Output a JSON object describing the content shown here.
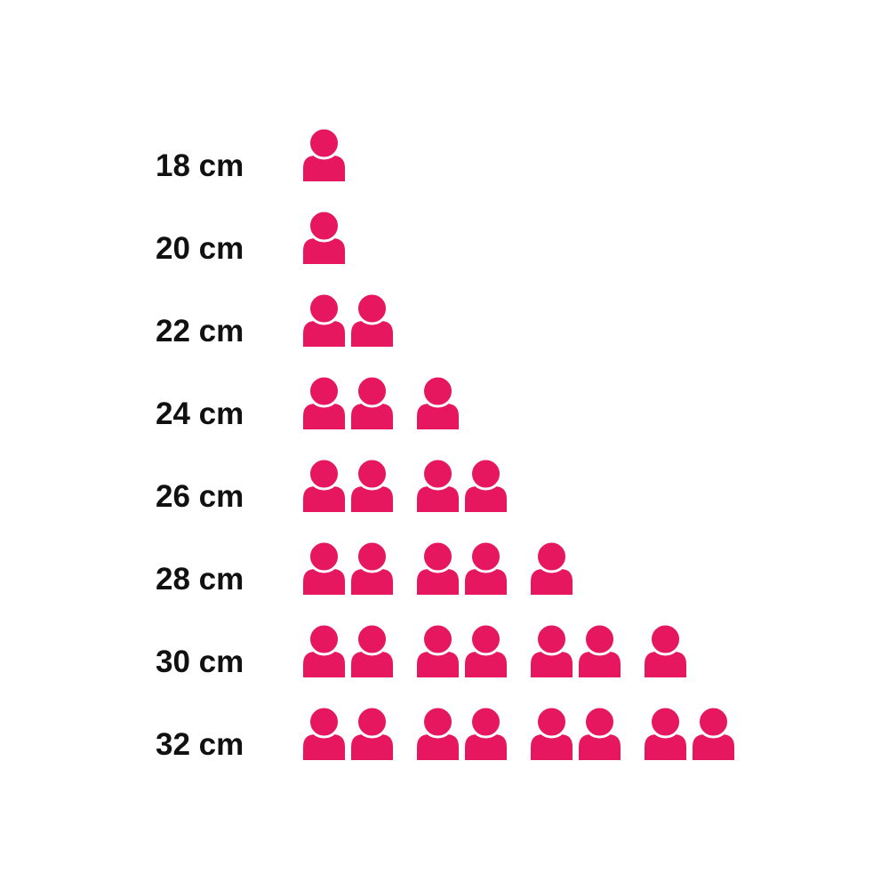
{
  "page": {
    "background": "#ffffff"
  },
  "chart_data": {
    "type": "bar",
    "variant": "pictogram",
    "icon": "person-icon",
    "icon_color": "#E6175F",
    "label_color": "#111111",
    "categories": [
      "18 cm",
      "20 cm",
      "22 cm",
      "24 cm",
      "26 cm",
      "28 cm",
      "30 cm",
      "32 cm"
    ],
    "values": [
      1,
      1,
      2,
      3,
      4,
      5,
      7,
      8
    ],
    "icons_per_group": 2,
    "one_icon_equals": 1,
    "legend": "none",
    "grid": false,
    "axes": "none"
  }
}
